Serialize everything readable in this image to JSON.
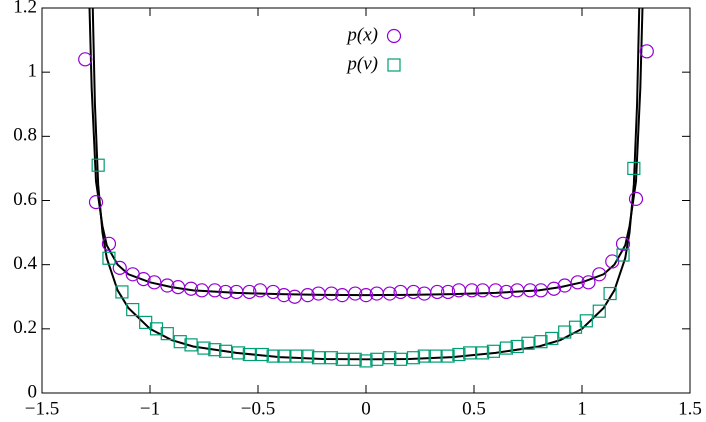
{
  "chart_data": {
    "type": "scatter",
    "xlim": [
      -1.5,
      1.5
    ],
    "ylim": [
      0,
      1.2
    ],
    "xticks": [
      {
        "value": -1.5,
        "label": "−1.5"
      },
      {
        "value": -1,
        "label": "−1"
      },
      {
        "value": -0.5,
        "label": "−0.5"
      },
      0,
      0.5,
      1,
      1.5
    ],
    "yticks": [
      0,
      0.2,
      0.4,
      0.6,
      0.8,
      1,
      1.2
    ],
    "legend": "top-center",
    "series": [
      {
        "name": "p(x)",
        "color": "#9400d3",
        "marker": "circle",
        "x": [
          -1.3,
          -1.25,
          -1.19,
          -1.14,
          -1.08,
          -1.03,
          -0.98,
          -0.92,
          -0.87,
          -0.81,
          -0.76,
          -0.7,
          -0.65,
          -0.6,
          -0.54,
          -0.49,
          -0.43,
          -0.38,
          -0.33,
          -0.27,
          -0.22,
          -0.16,
          -0.11,
          -0.05,
          0,
          0.05,
          0.11,
          0.16,
          0.22,
          0.27,
          0.33,
          0.38,
          0.43,
          0.49,
          0.54,
          0.6,
          0.65,
          0.7,
          0.76,
          0.81,
          0.87,
          0.92,
          0.98,
          1.03,
          1.08,
          1.14,
          1.19,
          1.25,
          1.3
        ],
        "values": [
          1.04,
          0.595,
          0.465,
          0.39,
          0.37,
          0.355,
          0.345,
          0.335,
          0.33,
          0.325,
          0.32,
          0.32,
          0.315,
          0.315,
          0.315,
          0.32,
          0.315,
          0.305,
          0.3,
          0.305,
          0.31,
          0.31,
          0.305,
          0.31,
          0.305,
          0.31,
          0.31,
          0.315,
          0.315,
          0.31,
          0.315,
          0.315,
          0.32,
          0.32,
          0.32,
          0.32,
          0.315,
          0.32,
          0.32,
          0.32,
          0.325,
          0.335,
          0.345,
          0.345,
          0.37,
          0.41,
          0.465,
          0.605,
          1.065
        ]
      },
      {
        "name": "p(v)",
        "color": "#009e73",
        "marker": "square",
        "x": [
          -1.24,
          -1.19,
          -1.13,
          -1.08,
          -1.02,
          -0.97,
          -0.92,
          -0.86,
          -0.81,
          -0.75,
          -0.7,
          -0.65,
          -0.59,
          -0.54,
          -0.48,
          -0.43,
          -0.38,
          -0.32,
          -0.27,
          -0.22,
          -0.16,
          -0.11,
          -0.05,
          0,
          0.05,
          0.11,
          0.16,
          0.22,
          0.27,
          0.32,
          0.38,
          0.43,
          0.48,
          0.54,
          0.59,
          0.65,
          0.7,
          0.75,
          0.81,
          0.86,
          0.92,
          0.97,
          1.02,
          1.08,
          1.13,
          1.19,
          1.24
        ],
        "values": [
          0.71,
          0.42,
          0.315,
          0.26,
          0.22,
          0.2,
          0.185,
          0.16,
          0.15,
          0.14,
          0.135,
          0.13,
          0.125,
          0.12,
          0.12,
          0.115,
          0.115,
          0.115,
          0.115,
          0.11,
          0.11,
          0.105,
          0.105,
          0.1,
          0.105,
          0.11,
          0.105,
          0.11,
          0.115,
          0.115,
          0.115,
          0.12,
          0.125,
          0.125,
          0.13,
          0.14,
          0.145,
          0.155,
          0.16,
          0.17,
          0.19,
          0.205,
          0.225,
          0.255,
          0.31,
          0.43,
          0.7
        ]
      }
    ],
    "lines": [
      {
        "color": "#000000",
        "x": [
          -1.28,
          -1.27,
          -1.25,
          -1.22,
          -1.2,
          -1.15,
          -1.1,
          -1.0,
          -0.9,
          -0.8,
          -0.6,
          -0.4,
          -0.2,
          0,
          0.2,
          0.4,
          0.6,
          0.8,
          0.9,
          1.0,
          1.1,
          1.15,
          1.2,
          1.22,
          1.25,
          1.27,
          1.28
        ],
        "values": [
          1.2,
          0.95,
          0.66,
          0.52,
          0.46,
          0.4,
          0.37,
          0.345,
          0.33,
          0.32,
          0.312,
          0.308,
          0.306,
          0.305,
          0.306,
          0.308,
          0.312,
          0.32,
          0.33,
          0.345,
          0.37,
          0.4,
          0.46,
          0.52,
          0.66,
          0.95,
          1.2
        ]
      },
      {
        "color": "#000000",
        "x": [
          -1.265,
          -1.255,
          -1.24,
          -1.22,
          -1.2,
          -1.15,
          -1.1,
          -1.0,
          -0.9,
          -0.8,
          -0.6,
          -0.4,
          -0.2,
          0,
          0.2,
          0.4,
          0.6,
          0.8,
          0.9,
          1.0,
          1.1,
          1.15,
          1.2,
          1.22,
          1.24,
          1.255,
          1.265
        ],
        "values": [
          1.2,
          0.9,
          0.65,
          0.5,
          0.42,
          0.32,
          0.265,
          0.2,
          0.165,
          0.145,
          0.125,
          0.112,
          0.106,
          0.105,
          0.106,
          0.112,
          0.125,
          0.145,
          0.165,
          0.2,
          0.265,
          0.32,
          0.42,
          0.5,
          0.65,
          0.9,
          1.2
        ]
      }
    ]
  }
}
